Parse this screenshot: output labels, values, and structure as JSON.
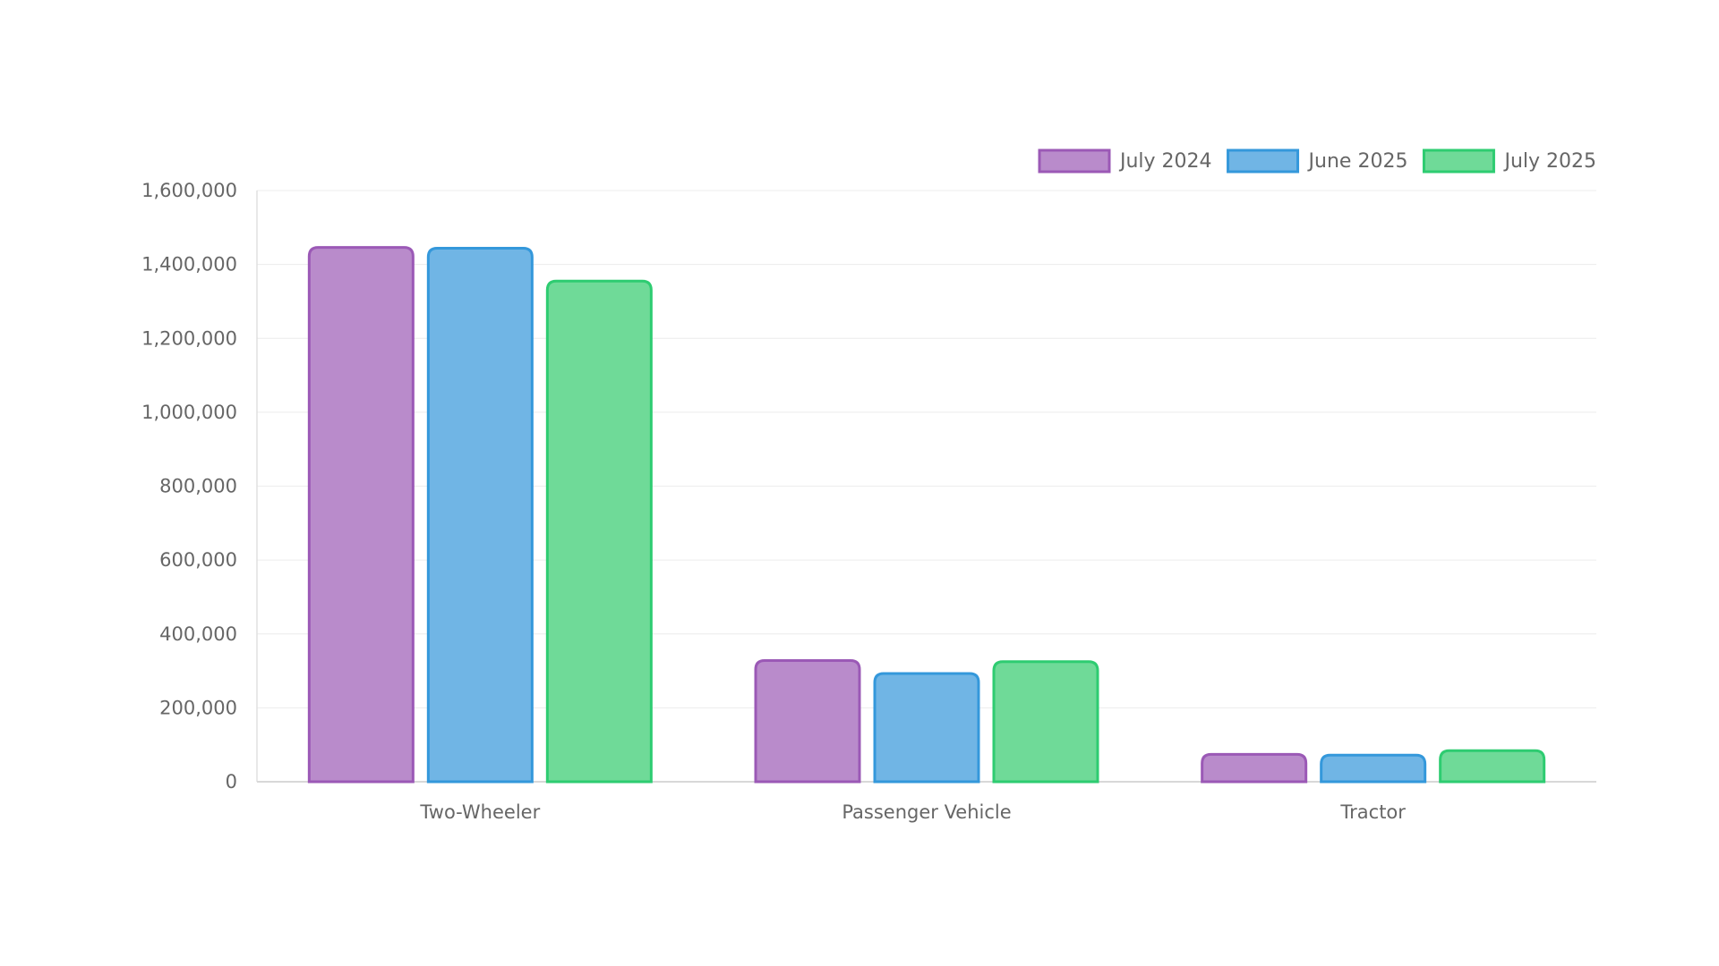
{
  "chart_data": {
    "type": "bar",
    "title": "",
    "xlabel": "",
    "ylabel": "",
    "categories": [
      "Two-Wheeler",
      "Passenger Vehicle",
      "Tractor"
    ],
    "series": [
      {
        "name": "July 2024",
        "values": [
          1446000,
          328000,
          74000
        ],
        "fill": "#b98bcb",
        "stroke": "#9b59b6"
      },
      {
        "name": "June 2025",
        "values": [
          1444000,
          293000,
          72000
        ],
        "fill": "#70b5e5",
        "stroke": "#3498db"
      },
      {
        "name": "July 2025",
        "values": [
          1355000,
          325000,
          84000
        ],
        "fill": "#6fda98",
        "stroke": "#2ecc71"
      }
    ],
    "ylim": [
      0,
      1600000
    ],
    "yticks": [
      0,
      200000,
      400000,
      600000,
      800000,
      1000000,
      1200000,
      1400000,
      1600000
    ],
    "ytick_labels": [
      "0",
      "200,000",
      "400,000",
      "600,000",
      "800,000",
      "1,000,000",
      "1,200,000",
      "1,400,000",
      "1,600,000"
    ],
    "grid": true,
    "legend_position": "top-right"
  }
}
